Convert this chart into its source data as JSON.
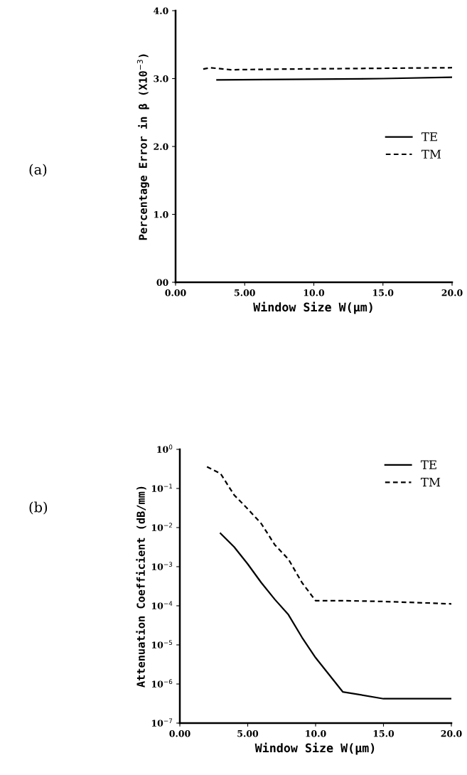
{
  "chart_data": [
    {
      "type": "line",
      "annotations": [
        "(a)"
      ],
      "xlabel": "Window Size W(μm)",
      "ylabel": "Percentage Error in β (X10$^{−3}$)",
      "xlim": [
        0,
        20
      ],
      "xticks": [
        {
          "value": 0,
          "label": "0.00"
        },
        {
          "value": 5,
          "label": "5.00"
        },
        {
          "value": 10,
          "label": "10.0"
        },
        {
          "value": 15,
          "label": "15.0"
        },
        {
          "value": 20,
          "label": "20.0"
        }
      ],
      "ylim": [
        0,
        4
      ],
      "yticks": [
        {
          "value": 0,
          "label": "00"
        },
        {
          "value": 1,
          "label": "1.0"
        },
        {
          "value": 2,
          "label": "2.0"
        },
        {
          "value": 3,
          "label": "3.0"
        },
        {
          "value": 4,
          "label": "4.0"
        }
      ],
      "grid": false,
      "legend": "center right",
      "series": [
        {
          "name": "TE",
          "color": "#000000",
          "line_style": "solid",
          "x": [
            3,
            10,
            15,
            20
          ],
          "values": [
            2.98,
            2.99,
            3.0,
            3.02
          ]
        },
        {
          "name": "TM",
          "color": "#000000",
          "line_style": "dashed",
          "x": [
            2,
            2.5,
            4,
            8,
            20
          ],
          "values": [
            3.14,
            3.16,
            3.13,
            3.14,
            3.16
          ]
        }
      ]
    },
    {
      "type": "line",
      "annotations": [
        "(b)"
      ],
      "xlabel": "Window Size W(μm)",
      "ylabel": "Attenuation Coefficient (dB/mm)",
      "log": "y",
      "xlim": [
        0,
        20
      ],
      "xticks": [
        {
          "value": 0,
          "label": "0.00"
        },
        {
          "value": 5,
          "label": "5.00"
        },
        {
          "value": 10,
          "label": "10.0"
        },
        {
          "value": 15,
          "label": "15.0"
        },
        {
          "value": 20,
          "label": "20.0"
        }
      ],
      "ylim": [
        1e-07,
        1
      ],
      "yticks": [
        {
          "value": 1e-07,
          "label": "10$^{−7}$"
        },
        {
          "value": 1e-06,
          "label": "10$^{−6}$"
        },
        {
          "value": 1e-05,
          "label": "10$^{−5}$"
        },
        {
          "value": 0.0001,
          "label": "10$^{−4}$"
        },
        {
          "value": 0.001,
          "label": "10$^{−3}$"
        },
        {
          "value": 0.01,
          "label": "10$^{−2}$"
        },
        {
          "value": 0.1,
          "label": "10$^{−1}$"
        },
        {
          "value": 1,
          "label": "10$^{0}$"
        }
      ],
      "grid": false,
      "legend": "top right",
      "series": [
        {
          "name": "TE",
          "color": "#000000",
          "line_style": "solid",
          "x": [
            3,
            4,
            5,
            6,
            7,
            8,
            9,
            10,
            12,
            15,
            20
          ],
          "values": [
            0.0071,
            0.0032,
            0.00117,
            0.00039,
            0.000145,
            5.9e-05,
            1.55e-05,
            4.7e-06,
            6.3e-07,
            4.2e-07,
            4.2e-07
          ]
        },
        {
          "name": "TM",
          "color": "#000000",
          "line_style": "dashed",
          "x": [
            2,
            3,
            4,
            5,
            6,
            7,
            8,
            9,
            10,
            12,
            15,
            20
          ],
          "values": [
            0.36,
            0.24,
            0.068,
            0.03,
            0.0126,
            0.0036,
            0.00155,
            0.00039,
            0.000135,
            0.000135,
            0.000129,
            0.000112
          ]
        }
      ]
    }
  ]
}
